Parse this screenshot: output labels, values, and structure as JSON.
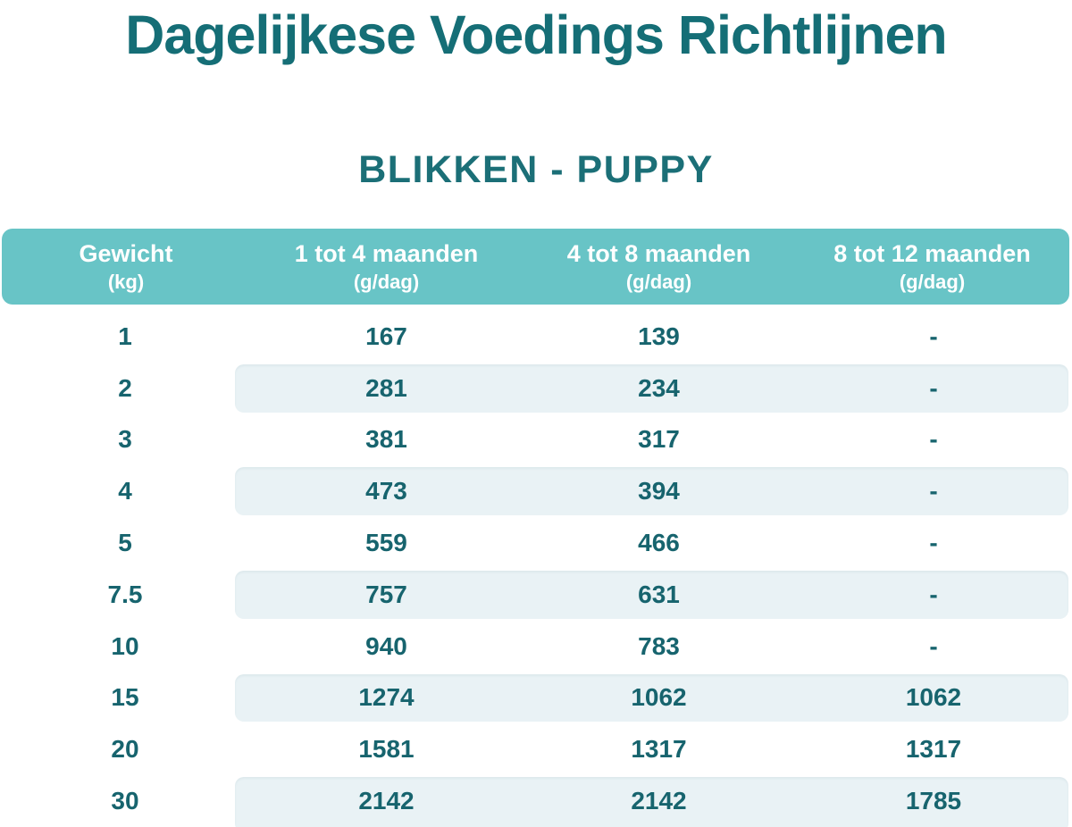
{
  "page": {
    "title": "Dagelijkese Voedings Richtlijnen",
    "subtitle": "BLIKKEN - PUPPY"
  },
  "colors": {
    "accent_teal": "#68c4c6",
    "title_teal": "#156e76",
    "value_teal": "#17646e",
    "stripe_blue": "#e9f2f5",
    "header_text": "#ffffff"
  },
  "table": {
    "columns": [
      {
        "label": "Gewicht",
        "unit": "(kg)"
      },
      {
        "label": "1 tot 4 maanden",
        "unit": "(g/dag)"
      },
      {
        "label": "4 tot 8 maanden",
        "unit": "(g/dag)"
      },
      {
        "label": "8 tot 12 maanden",
        "unit": "(g/dag)"
      }
    ],
    "rows": [
      [
        "1",
        "167",
        "139",
        "-"
      ],
      [
        "2",
        "281",
        "234",
        "-"
      ],
      [
        "3",
        "381",
        "317",
        "-"
      ],
      [
        "4",
        "473",
        "394",
        "-"
      ],
      [
        "5",
        "559",
        "466",
        "-"
      ],
      [
        "7.5",
        "757",
        "631",
        "-"
      ],
      [
        "10",
        "940",
        "783",
        "-"
      ],
      [
        "15",
        "1274",
        "1062",
        "1062"
      ],
      [
        "20",
        "1581",
        "1317",
        "1317"
      ],
      [
        "30",
        "2142",
        "2142",
        "1785"
      ]
    ]
  },
  "chart_data": {
    "type": "table",
    "title": "Dagelijkese Voedings Richtlijnen",
    "subtitle": "BLIKKEN - PUPPY",
    "columns": [
      "Gewicht (kg)",
      "1 tot 4 maanden (g/dag)",
      "4 tot 8 maanden (g/dag)",
      "8 tot 12 maanden (g/dag)"
    ],
    "rows": [
      [
        "1",
        "167",
        "139",
        "-"
      ],
      [
        "2",
        "281",
        "234",
        "-"
      ],
      [
        "3",
        "381",
        "317",
        "-"
      ],
      [
        "4",
        "473",
        "394",
        "-"
      ],
      [
        "5",
        "559",
        "466",
        "-"
      ],
      [
        "7.5",
        "757",
        "631",
        "-"
      ],
      [
        "10",
        "940",
        "783",
        "-"
      ],
      [
        "15",
        "1274",
        "1062",
        "1062"
      ],
      [
        "20",
        "1581",
        "1317",
        "1317"
      ],
      [
        "30",
        "2142",
        "2142",
        "1785"
      ]
    ]
  }
}
